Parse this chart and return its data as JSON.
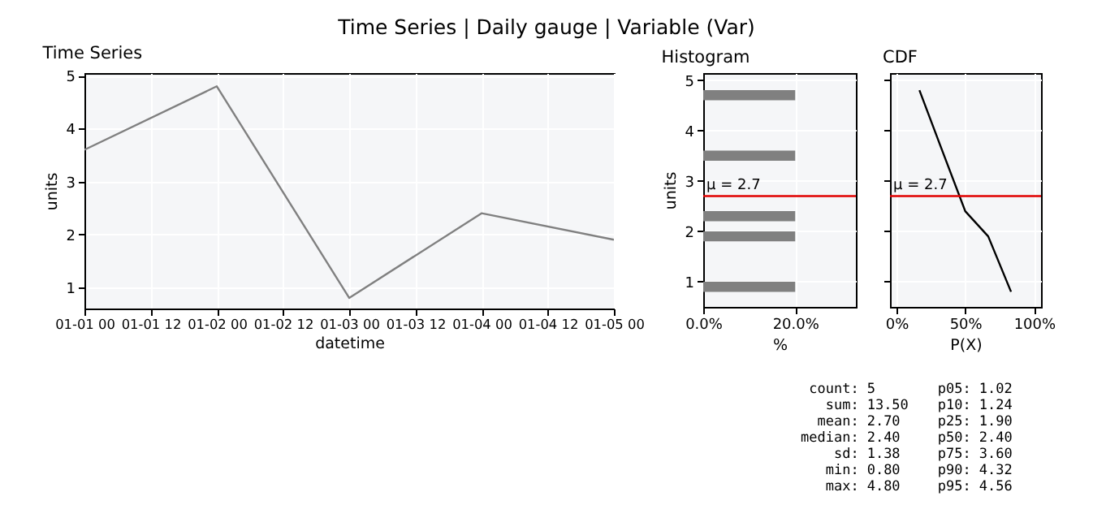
{
  "chart_data": [
    {
      "type": "other",
      "title": "Time Series | Daily gauge | Variable (Var)"
    },
    {
      "type": "line",
      "title": "Time Series",
      "xlabel": "datetime",
      "ylabel": "units",
      "x": [
        "--01-01T00:00",
        "--01-02T00:00",
        "--01-03T00:00",
        "--01-04T00:00",
        "--01-05T00:00"
      ],
      "values": [
        3.6,
        4.8,
        0.8,
        2.4,
        1.9
      ],
      "color": "#808080",
      "xlim": [
        "--01-01T00:00",
        "--01-05T00:00"
      ],
      "xticks": [
        {
          "value": "--01-01T00:00",
          "label": "01-01 00"
        },
        {
          "value": "--01-01T12:00",
          "label": "01-01 12"
        },
        {
          "value": "--01-02T00:00",
          "label": "01-02 00"
        },
        {
          "value": "--01-02T12:00",
          "label": "01-02 12"
        },
        {
          "value": "--01-03T00:00",
          "label": "01-03 00"
        },
        {
          "value": "--01-03T12:00",
          "label": "01-03 12"
        },
        {
          "value": "--01-04T00:00",
          "label": "01-04 00"
        },
        {
          "value": "--01-04T12:00",
          "label": "01-04 12"
        },
        {
          "value": "--01-05T00:00",
          "label": "01-05 00"
        }
      ],
      "ylim": [
        0.6,
        5.05
      ],
      "yticks": [
        1,
        2,
        3,
        4,
        5
      ],
      "grid": true
    },
    {
      "type": "histogram",
      "orientation": "horizontal",
      "title": "Histogram",
      "xlabel": "%",
      "ylabel": "units",
      "bins": [
        0.8,
        1.0,
        1.2,
        1.4,
        1.6,
        1.8,
        2.0,
        2.2,
        2.4,
        2.6,
        2.8,
        3.0,
        3.2,
        3.4,
        3.6,
        3.8,
        4.0,
        4.2,
        4.4,
        4.6,
        4.8
      ],
      "values": [
        20,
        0,
        0,
        0,
        0,
        20,
        0,
        20,
        0,
        0,
        0,
        0,
        0,
        20,
        0,
        0,
        0,
        0,
        0,
        20
      ],
      "color": "#808080",
      "xlim": [
        0,
        33.2
      ],
      "xticks": [
        {
          "value": 0,
          "label": "0.0%"
        },
        {
          "value": 20,
          "label": "20.0%"
        }
      ],
      "ylim": [
        0.5,
        5.14
      ],
      "yticks": [
        1,
        2,
        3,
        4,
        5
      ],
      "grid": true,
      "ref_lines": [
        {
          "axis": "y",
          "value": 2.7,
          "label": "μ = 2.7",
          "color": "#e00000"
        }
      ]
    },
    {
      "type": "line",
      "title": "CDF",
      "xlabel": "P(X)",
      "x": [
        16.7,
        33.3,
        50,
        66.7,
        83.3
      ],
      "values": [
        4.8,
        3.6,
        2.4,
        1.9,
        0.8
      ],
      "color": "#000000",
      "xlim": [
        -4.7,
        105.1
      ],
      "xticks": [
        {
          "value": 0,
          "label": "0%"
        },
        {
          "value": 50,
          "label": "50%"
        },
        {
          "value": 100,
          "label": "100%"
        }
      ],
      "ylim": [
        0.5,
        5.14
      ],
      "yticks": [
        1,
        2,
        3,
        4,
        5
      ],
      "tick_labels": "x",
      "grid": true,
      "ref_lines": [
        {
          "axis": "y",
          "value": 2.7,
          "label": "μ = 2.7",
          "color": "#e00000"
        }
      ]
    },
    {
      "type": "other",
      "annotations": [
        "count: 5",
        "sum: 13.50",
        "mean: 2.70",
        "median: 2.40",
        "sd: 1.38",
        "min: 0.80",
        "max: 4.80",
        "p05: 1.02",
        "p10: 1.24",
        "p25: 1.90",
        "p50: 2.40",
        "p75: 3.60",
        "p90: 4.32",
        "p95: 4.56"
      ]
    }
  ]
}
